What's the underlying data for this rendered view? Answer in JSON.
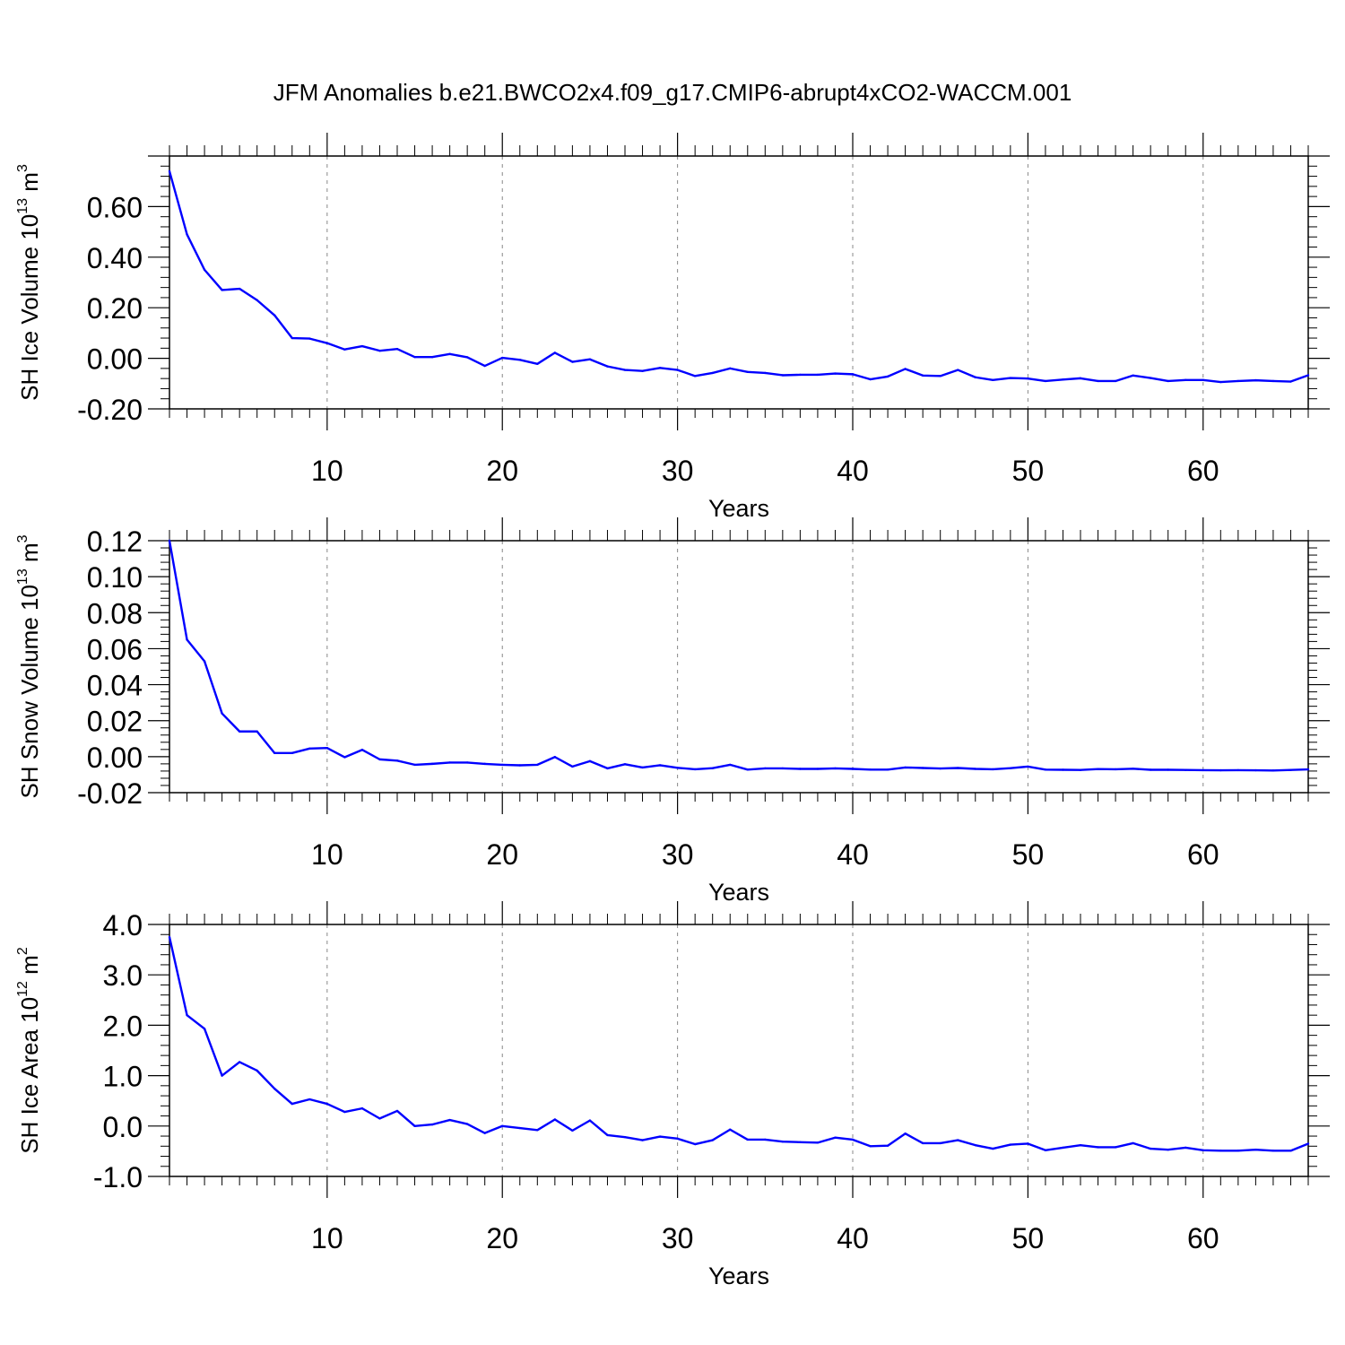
{
  "figure": {
    "title": "JFM Anomalies b.e21.BWCO2x4.f09_g17.CMIP6-abrupt4xCO2-WACCM.001"
  },
  "style": {
    "line_color": "#0000ff",
    "axis_color": "#000000",
    "grid_color": "#888888"
  },
  "chart_data": [
    {
      "type": "line",
      "xlabel": "Years",
      "ylabel": "SH Ice Volume 10",
      "ylabel_exp": "13",
      "ylabel_unit": " m",
      "ylabel_unit_exp": "3",
      "xlim": [
        1,
        66
      ],
      "ylim": [
        -0.2,
        0.8
      ],
      "yticks": [
        -0.2,
        0.0,
        0.2,
        0.4,
        0.6
      ],
      "ytick_labels": [
        "-0.20",
        "0.00",
        "0.20",
        "0.40",
        "0.60"
      ],
      "xticks": [
        10,
        20,
        30,
        40,
        50,
        60
      ],
      "xtick_labels": [
        "10",
        "20",
        "30",
        "40",
        "50",
        "60"
      ],
      "grid": "vertical dashed at major x ticks",
      "x": [
        1,
        2,
        3,
        4,
        5,
        6,
        7,
        8,
        9,
        10,
        11,
        12,
        13,
        14,
        15,
        16,
        17,
        18,
        19,
        20,
        21,
        22,
        23,
        24,
        25,
        26,
        27,
        28,
        29,
        30,
        31,
        32,
        33,
        34,
        35,
        36,
        37,
        38,
        39,
        40,
        41,
        42,
        43,
        44,
        45,
        46,
        47,
        48,
        49,
        50,
        51,
        52,
        53,
        54,
        55,
        56,
        57,
        58,
        59,
        60,
        61,
        62,
        63,
        64,
        65,
        66
      ],
      "series": [
        {
          "values": [
            0.74,
            0.49,
            0.35,
            0.27,
            0.275,
            0.23,
            0.17,
            0.08,
            0.078,
            0.06,
            0.035,
            0.048,
            0.03,
            0.037,
            0.005,
            0.005,
            0.017,
            0.004,
            -0.03,
            0.002,
            -0.006,
            -0.022,
            0.022,
            -0.014,
            -0.004,
            -0.032,
            -0.046,
            -0.05,
            -0.038,
            -0.046,
            -0.07,
            -0.058,
            -0.04,
            -0.054,
            -0.058,
            -0.067,
            -0.065,
            -0.065,
            -0.06,
            -0.063,
            -0.083,
            -0.072,
            -0.042,
            -0.068,
            -0.07,
            -0.046,
            -0.075,
            -0.086,
            -0.078,
            -0.08,
            -0.09,
            -0.084,
            -0.079,
            -0.09,
            -0.09,
            -0.068,
            -0.078,
            -0.09,
            -0.086,
            -0.086,
            -0.094,
            -0.09,
            -0.087,
            -0.09,
            -0.092,
            -0.067
          ]
        }
      ]
    },
    {
      "type": "line",
      "xlabel": "Years",
      "ylabel": "SH Snow Volume 10",
      "ylabel_exp": "13",
      "ylabel_unit": " m",
      "ylabel_unit_exp": "3",
      "xlim": [
        1,
        66
      ],
      "ylim": [
        -0.02,
        0.12
      ],
      "yticks": [
        -0.02,
        0.0,
        0.02,
        0.04,
        0.06,
        0.08,
        0.1,
        0.12
      ],
      "ytick_labels": [
        "-0.02",
        "0.00",
        "0.02",
        "0.04",
        "0.06",
        "0.08",
        "0.10",
        "0.12"
      ],
      "xticks": [
        10,
        20,
        30,
        40,
        50,
        60
      ],
      "xtick_labels": [
        "10",
        "20",
        "30",
        "40",
        "50",
        "60"
      ],
      "grid": "vertical dashed at major x ticks",
      "x": [
        1,
        2,
        3,
        4,
        5,
        6,
        7,
        8,
        9,
        10,
        11,
        12,
        13,
        14,
        15,
        16,
        17,
        18,
        19,
        20,
        21,
        22,
        23,
        24,
        25,
        26,
        27,
        28,
        29,
        30,
        31,
        32,
        33,
        34,
        35,
        36,
        37,
        38,
        39,
        40,
        41,
        42,
        43,
        44,
        45,
        46,
        47,
        48,
        49,
        50,
        51,
        52,
        53,
        54,
        55,
        56,
        57,
        58,
        59,
        60,
        61,
        62,
        63,
        64,
        65,
        66
      ],
      "series": [
        {
          "values": [
            0.12,
            0.065,
            0.053,
            0.024,
            0.014,
            0.014,
            0.002,
            0.002,
            0.0045,
            0.0048,
            -0.0003,
            0.0038,
            -0.0015,
            -0.0022,
            -0.0045,
            -0.004,
            -0.0033,
            -0.0033,
            -0.004,
            -0.0045,
            -0.0048,
            -0.0045,
            -0.0002,
            -0.0055,
            -0.0025,
            -0.0065,
            -0.0042,
            -0.006,
            -0.0048,
            -0.0062,
            -0.007,
            -0.0064,
            -0.0045,
            -0.0072,
            -0.0065,
            -0.0065,
            -0.0068,
            -0.0068,
            -0.0065,
            -0.0068,
            -0.0072,
            -0.0072,
            -0.006,
            -0.0063,
            -0.0066,
            -0.0063,
            -0.0068,
            -0.007,
            -0.0064,
            -0.0055,
            -0.0072,
            -0.0073,
            -0.0074,
            -0.0069,
            -0.007,
            -0.0067,
            -0.0073,
            -0.0073,
            -0.0074,
            -0.0075,
            -0.0076,
            -0.0075,
            -0.0076,
            -0.0077,
            -0.0074,
            -0.0071
          ]
        }
      ]
    },
    {
      "type": "line",
      "xlabel": "Years",
      "ylabel": "SH Ice Area 10",
      "ylabel_exp": "12",
      "ylabel_unit": " m",
      "ylabel_unit_exp": "2",
      "xlim": [
        1,
        66
      ],
      "ylim": [
        -1.0,
        4.0
      ],
      "yticks": [
        -1.0,
        0.0,
        1.0,
        2.0,
        3.0,
        4.0
      ],
      "ytick_labels": [
        "-1.0",
        "0.0",
        "1.0",
        "2.0",
        "3.0",
        "4.0"
      ],
      "xticks": [
        10,
        20,
        30,
        40,
        50,
        60
      ],
      "xtick_labels": [
        "10",
        "20",
        "30",
        "40",
        "50",
        "60"
      ],
      "grid": "vertical dashed at major x ticks",
      "x": [
        1,
        2,
        3,
        4,
        5,
        6,
        7,
        8,
        9,
        10,
        11,
        12,
        13,
        14,
        15,
        16,
        17,
        18,
        19,
        20,
        21,
        22,
        23,
        24,
        25,
        26,
        27,
        28,
        29,
        30,
        31,
        32,
        33,
        34,
        35,
        36,
        37,
        38,
        39,
        40,
        41,
        42,
        43,
        44,
        45,
        46,
        47,
        48,
        49,
        50,
        51,
        52,
        53,
        54,
        55,
        56,
        57,
        58,
        59,
        60,
        61,
        62,
        63,
        64,
        65,
        66
      ],
      "series": [
        {
          "values": [
            3.75,
            2.2,
            1.93,
            1.0,
            1.27,
            1.1,
            0.74,
            0.44,
            0.53,
            0.44,
            0.28,
            0.35,
            0.15,
            0.3,
            0.0,
            0.03,
            0.12,
            0.04,
            -0.14,
            0.0,
            -0.04,
            -0.08,
            0.13,
            -0.09,
            0.11,
            -0.18,
            -0.22,
            -0.28,
            -0.21,
            -0.25,
            -0.36,
            -0.28,
            -0.07,
            -0.27,
            -0.27,
            -0.31,
            -0.32,
            -0.33,
            -0.23,
            -0.27,
            -0.4,
            -0.39,
            -0.15,
            -0.34,
            -0.34,
            -0.28,
            -0.38,
            -0.45,
            -0.37,
            -0.35,
            -0.48,
            -0.43,
            -0.38,
            -0.42,
            -0.42,
            -0.34,
            -0.45,
            -0.47,
            -0.43,
            -0.48,
            -0.49,
            -0.49,
            -0.47,
            -0.49,
            -0.49,
            -0.35
          ]
        }
      ]
    }
  ]
}
